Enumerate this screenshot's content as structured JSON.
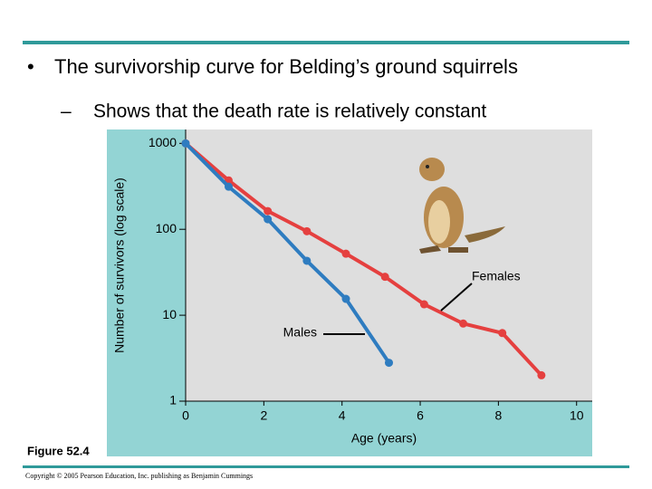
{
  "slide_title": "The survivorship curve for Belding’s ground squirrels",
  "slide_subtitle": "Shows that the death rate is relatively constant",
  "figure_label": "Figure 52.4",
  "copyright": "Copyright © 2005 Pearson Education, Inc. publishing as Benjamin Cummings",
  "chart_data": {
    "type": "line",
    "x_label": "Age (years)",
    "y_label": "Number of survivors (log scale)",
    "ylog": true,
    "grid": false,
    "xlim": [
      0,
      10.4
    ],
    "ylim": [
      1,
      1450
    ],
    "xticks": [
      0,
      2,
      4,
      6,
      8,
      10
    ],
    "yticks": [
      1,
      10,
      100,
      1000
    ],
    "series": [
      {
        "name": "Females",
        "color": "#e5403f",
        "x": [
          0,
          1.1,
          2.1,
          3.1,
          4.1,
          5.1,
          6.1,
          7.1,
          8.1,
          9.1
        ],
        "values": [
          1000,
          370,
          163,
          95,
          52,
          28,
          13.4,
          8,
          6.2,
          2
        ]
      },
      {
        "name": "Males",
        "color": "#2e7cc0",
        "x": [
          0,
          1.1,
          2.1,
          3.1,
          4.1,
          5.2
        ],
        "values": [
          1000,
          313,
          131,
          43,
          15.5,
          2.8
        ]
      }
    ]
  }
}
